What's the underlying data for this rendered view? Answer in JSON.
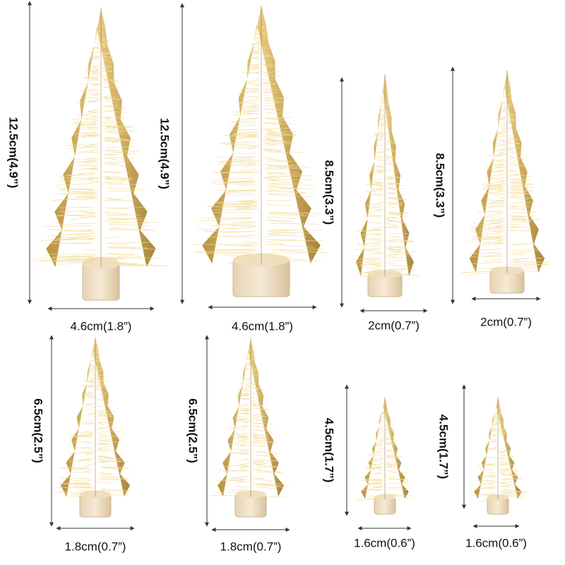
{
  "trees": [
    {
      "height": "12.5cm(4.9”)",
      "width": "4.6cm(1.8”)"
    },
    {
      "height": "12.5cm(4.9”)",
      "width": "4.6cm(1.8”)"
    },
    {
      "height": "8.5cm(3.3”)",
      "width": "2cm(0.7”)"
    },
    {
      "height": "8.5cm(3.3”)",
      "width": "2cm(0.7”)"
    },
    {
      "height": "6.5cm(2.5”)",
      "width": "1.8cm(0.7”)"
    },
    {
      "height": "6.5cm(2.5”)",
      "width": "1.8cm(0.7”)"
    },
    {
      "height": "4.5cm(1.7”)",
      "width": "1.6cm(0.6”)"
    },
    {
      "height": "4.5cm(1.7”)",
      "width": "1.6cm(0.6”)"
    }
  ]
}
